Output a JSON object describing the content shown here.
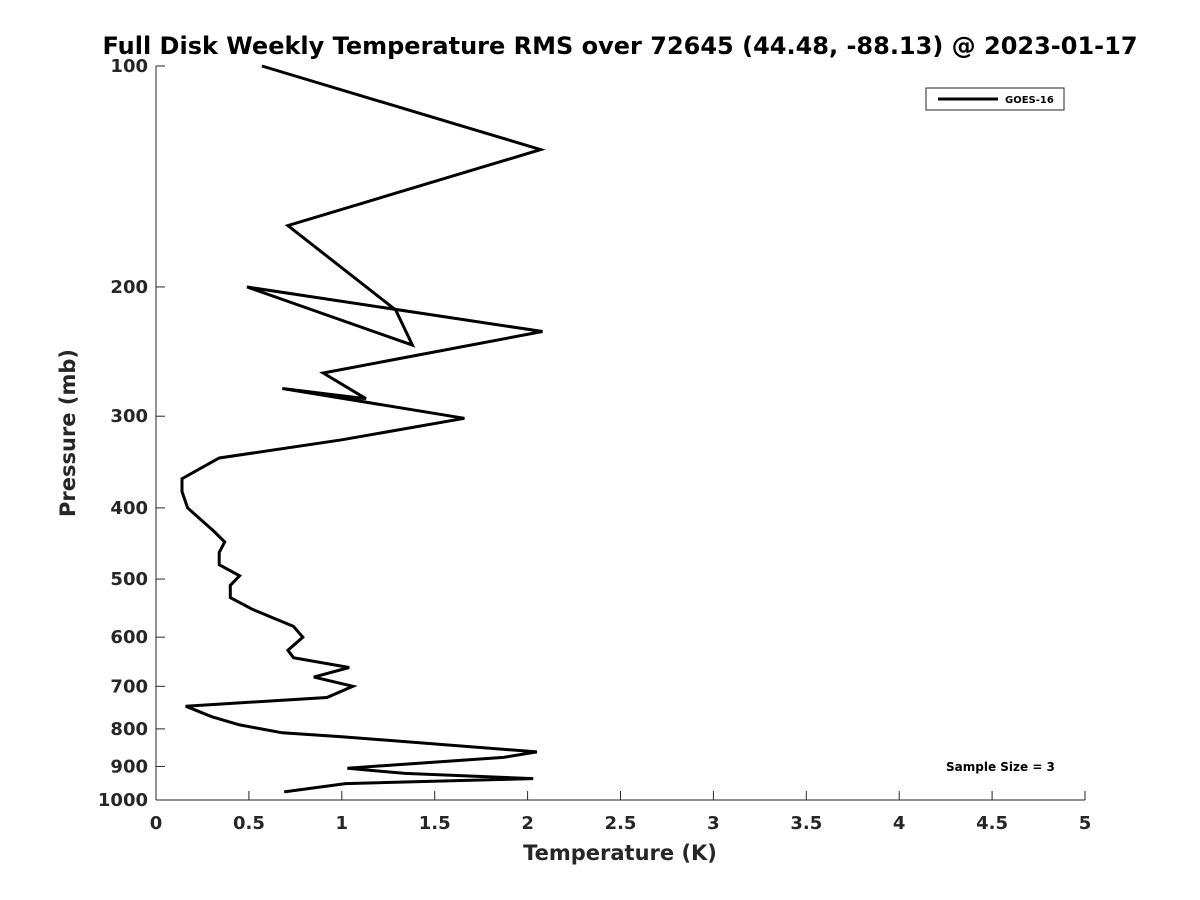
{
  "chart_data": {
    "type": "line",
    "title": "Full Disk Weekly Temperature RMS over 72645 (44.48, -88.13) @ 2023-01-17",
    "xlabel": "Temperature (K)",
    "ylabel": "Pressure (mb)",
    "xlim": [
      0,
      5
    ],
    "ylim": [
      100,
      1000
    ],
    "y_scale": "log",
    "y_reversed": true,
    "x_ticks": [
      0,
      0.5,
      1,
      1.5,
      2,
      2.5,
      3,
      3.5,
      4,
      4.5,
      5
    ],
    "x_tick_labels": [
      "0",
      "0.5",
      "1",
      "1.5",
      "2",
      "2.5",
      "3",
      "3.5",
      "4",
      "4.5",
      "5"
    ],
    "y_ticks": [
      100,
      200,
      300,
      400,
      500,
      600,
      700,
      800,
      900,
      1000
    ],
    "y_tick_labels": [
      "100",
      "200",
      "300",
      "400",
      "500",
      "600",
      "700",
      "800",
      "900",
      "1000"
    ],
    "grid": false,
    "legend_position": "top-right",
    "annotation": "Sample Size = 3",
    "series": [
      {
        "name": "GOES-16",
        "color": "#000000",
        "x": [
          0.57,
          2.07,
          0.71,
          1.29,
          1.38,
          0.49,
          2.08,
          0.9,
          1.13,
          0.68,
          1.66,
          1.0,
          0.34,
          0.14,
          0.14,
          0.17,
          0.31,
          0.37,
          0.34,
          0.34,
          0.45,
          0.4,
          0.4,
          0.52,
          0.74,
          0.79,
          0.71,
          0.74,
          1.04,
          0.85,
          1.06,
          0.92,
          0.16,
          0.3,
          0.45,
          0.68,
          1.0,
          2.05,
          1.87,
          1.03,
          1.34,
          2.03,
          1.02,
          0.69
        ],
        "y": [
          100,
          130,
          165,
          215,
          240,
          200,
          230,
          262,
          284,
          275,
          302,
          323,
          342,
          365,
          380,
          400,
          430,
          445,
          460,
          478,
          495,
          510,
          530,
          550,
          580,
          600,
          625,
          640,
          660,
          680,
          700,
          725,
          745,
          770,
          790,
          810,
          820,
          860,
          875,
          905,
          920,
          935,
          950,
          975
        ]
      }
    ]
  }
}
